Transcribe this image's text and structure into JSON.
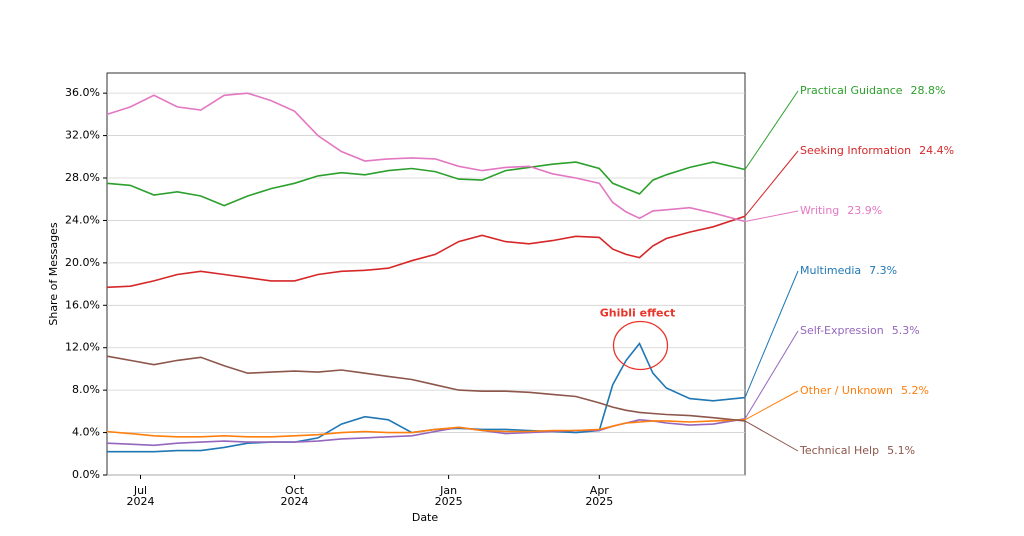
{
  "chart_data": {
    "type": "line",
    "x_label": "Date",
    "y_label": "Share of Messages",
    "annotation": "Ghibli effect",
    "x": [
      0,
      14,
      28,
      42,
      56,
      70,
      84,
      98,
      112,
      126,
      140,
      154,
      168,
      182,
      196,
      210,
      224,
      238,
      252,
      266,
      280,
      294,
      302,
      310,
      318,
      326,
      334,
      348,
      362,
      381
    ],
    "xlim": [
      0,
      381
    ],
    "xticks": [
      {
        "value": 20,
        "label": "Jul\n2024"
      },
      {
        "value": 112,
        "label": "Oct\n2024"
      },
      {
        "value": 204,
        "label": "Jan\n2025"
      },
      {
        "value": 294,
        "label": "Apr\n2025"
      }
    ],
    "ylim": [
      0,
      37.9
    ],
    "yticks": [
      {
        "value": 0,
        "label": "0.0%"
      },
      {
        "value": 4,
        "label": "4.0%"
      },
      {
        "value": 8,
        "label": "8.0%"
      },
      {
        "value": 12,
        "label": "12.0%"
      },
      {
        "value": 16,
        "label": "16.0%"
      },
      {
        "value": 20,
        "label": "20.0%"
      },
      {
        "value": 24,
        "label": "24.0%"
      },
      {
        "value": 28,
        "label": "28.0%"
      },
      {
        "value": 32,
        "label": "32.0%"
      },
      {
        "value": 36,
        "label": "36.0%"
      }
    ],
    "grid": true,
    "series": [
      {
        "name": "Practical Guidance",
        "color": "#2ca02c",
        "values": [
          27.5,
          27.3,
          26.4,
          26.7,
          26.3,
          25.4,
          26.3,
          27.0,
          27.5,
          28.2,
          28.5,
          28.3,
          28.7,
          28.9,
          28.6,
          27.9,
          27.8,
          28.7,
          29.0,
          29.3,
          29.5,
          28.9,
          27.5,
          27.0,
          26.5,
          27.8,
          28.3,
          29.0,
          29.5,
          28.8
        ],
        "value_labels": [
          null,
          null,
          null,
          null,
          null,
          null,
          null,
          null,
          null,
          null,
          null,
          null,
          null,
          null,
          null,
          null,
          null,
          null,
          null,
          null,
          null,
          null,
          null,
          null,
          null,
          null,
          null,
          null,
          null,
          "28.8%"
        ]
      },
      {
        "name": "Seeking Information",
        "color": "#d62728",
        "values": [
          17.7,
          17.8,
          18.3,
          18.9,
          19.2,
          18.9,
          18.6,
          18.3,
          18.3,
          18.9,
          19.2,
          19.3,
          19.5,
          20.2,
          20.8,
          22.0,
          22.6,
          22.0,
          21.8,
          22.1,
          22.5,
          22.4,
          21.3,
          20.8,
          20.5,
          21.6,
          22.3,
          22.9,
          23.4,
          24.4
        ],
        "value_labels": [
          null,
          null,
          null,
          null,
          null,
          null,
          null,
          null,
          null,
          null,
          null,
          null,
          null,
          null,
          null,
          null,
          null,
          null,
          null,
          null,
          null,
          null,
          null,
          null,
          null,
          null,
          null,
          null,
          null,
          "24.4%"
        ]
      },
      {
        "name": "Writing",
        "color": "#e377c2",
        "values": [
          34.0,
          34.7,
          35.8,
          34.7,
          34.4,
          35.8,
          36.0,
          35.3,
          34.3,
          32.0,
          30.5,
          29.6,
          29.8,
          29.9,
          29.8,
          29.1,
          28.7,
          29.0,
          29.1,
          28.4,
          28.0,
          27.5,
          25.7,
          24.8,
          24.2,
          24.9,
          25.0,
          25.2,
          24.7,
          23.9
        ],
        "value_labels": [
          null,
          null,
          null,
          null,
          null,
          null,
          null,
          null,
          null,
          null,
          null,
          null,
          null,
          null,
          null,
          null,
          null,
          null,
          null,
          null,
          null,
          null,
          null,
          null,
          null,
          null,
          null,
          null,
          null,
          "23.9%"
        ]
      },
      {
        "name": "Multimedia",
        "color": "#1f77b4",
        "values": [
          2.2,
          2.2,
          2.2,
          2.3,
          2.3,
          2.6,
          3.0,
          3.1,
          3.1,
          3.5,
          4.8,
          5.5,
          5.2,
          4.0,
          4.3,
          4.4,
          4.3,
          4.3,
          4.2,
          4.1,
          4.0,
          4.2,
          8.5,
          10.8,
          12.4,
          9.6,
          8.2,
          7.2,
          7.0,
          7.3
        ],
        "value_labels": [
          null,
          null,
          null,
          null,
          null,
          null,
          null,
          null,
          null,
          null,
          null,
          null,
          null,
          null,
          null,
          null,
          null,
          null,
          null,
          null,
          null,
          null,
          null,
          null,
          null,
          null,
          null,
          null,
          null,
          "7.3%"
        ]
      },
      {
        "name": "Self-Expression",
        "color": "#9467bd",
        "values": [
          3.0,
          2.9,
          2.8,
          3.0,
          3.1,
          3.2,
          3.1,
          3.1,
          3.1,
          3.2,
          3.4,
          3.5,
          3.6,
          3.7,
          4.1,
          4.5,
          4.2,
          3.9,
          4.0,
          4.1,
          4.2,
          4.2,
          4.6,
          4.9,
          5.2,
          5.1,
          4.9,
          4.7,
          4.8,
          5.3
        ],
        "value_labels": [
          null,
          null,
          null,
          null,
          null,
          null,
          null,
          null,
          null,
          null,
          null,
          null,
          null,
          null,
          null,
          null,
          null,
          null,
          null,
          null,
          null,
          null,
          null,
          null,
          null,
          null,
          null,
          null,
          null,
          "5.3%"
        ]
      },
      {
        "name": "Other / Unknown",
        "color": "#ff7f0e",
        "values": [
          4.1,
          3.9,
          3.7,
          3.6,
          3.6,
          3.7,
          3.6,
          3.6,
          3.7,
          3.8,
          4.0,
          4.1,
          4.0,
          4.0,
          4.3,
          4.5,
          4.2,
          4.1,
          4.1,
          4.2,
          4.2,
          4.3,
          4.6,
          4.9,
          5.0,
          5.1,
          5.1,
          5.0,
          5.1,
          5.2
        ],
        "value_labels": [
          null,
          null,
          null,
          null,
          null,
          null,
          null,
          null,
          null,
          null,
          null,
          null,
          null,
          null,
          null,
          null,
          null,
          null,
          null,
          null,
          null,
          null,
          null,
          null,
          null,
          null,
          null,
          null,
          null,
          "5.2%"
        ]
      },
      {
        "name": "Technical Help",
        "color": "#8c564b",
        "values": [
          11.2,
          10.8,
          10.4,
          10.8,
          11.1,
          10.3,
          9.6,
          9.7,
          9.8,
          9.7,
          9.9,
          9.6,
          9.3,
          9.0,
          8.5,
          8.0,
          7.9,
          7.9,
          7.8,
          7.6,
          7.4,
          6.8,
          6.4,
          6.1,
          5.9,
          5.8,
          5.7,
          5.6,
          5.4,
          5.1
        ],
        "value_labels": [
          null,
          null,
          null,
          null,
          null,
          null,
          null,
          null,
          null,
          null,
          null,
          null,
          null,
          null,
          null,
          null,
          null,
          null,
          null,
          null,
          null,
          null,
          null,
          null,
          null,
          null,
          null,
          null,
          null,
          "5.1%"
        ]
      }
    ]
  }
}
